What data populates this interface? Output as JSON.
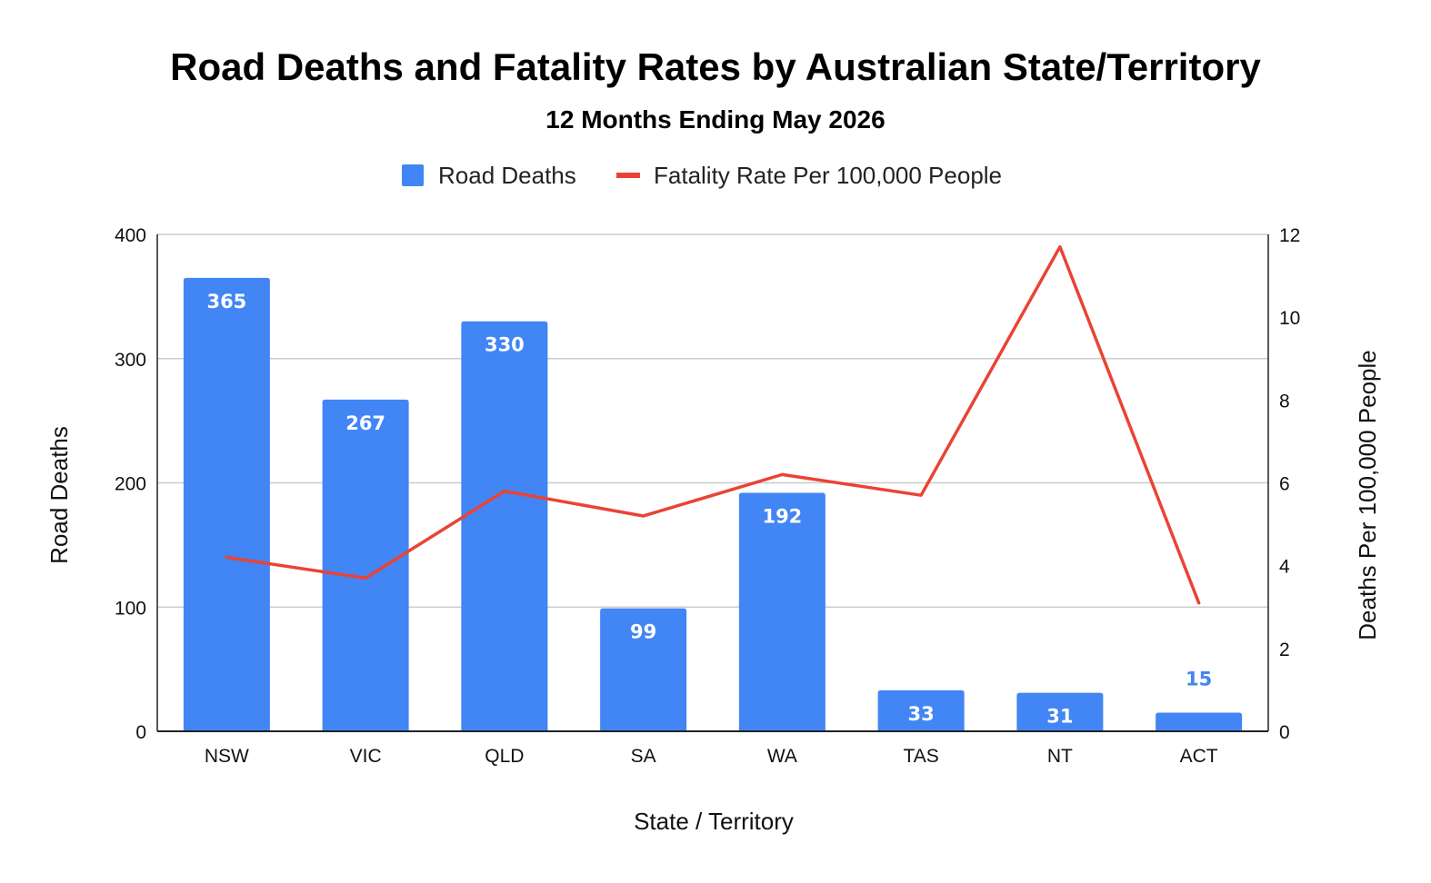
{
  "chart_data": {
    "type": "bar",
    "title": "Road Deaths and Fatality Rates by Australian State/Territory",
    "subtitle": "12 Months Ending May 2026",
    "xlabel": "State / Territory",
    "ylabel": "Road Deaths",
    "y2label": "Deaths Per 100,000 People",
    "categories": [
      "NSW",
      "VIC",
      "QLD",
      "SA",
      "WA",
      "TAS",
      "NT",
      "ACT"
    ],
    "series": [
      {
        "name": "Road Deaths",
        "type": "bar",
        "axis": "left",
        "color": "#4285f4",
        "values": [
          365,
          267,
          330,
          99,
          192,
          33,
          31,
          15
        ]
      },
      {
        "name": "Fatality Rate Per 100,000 People",
        "type": "line",
        "axis": "right",
        "color": "#ea4335",
        "values": [
          4.2,
          3.7,
          5.8,
          5.2,
          6.2,
          5.7,
          11.7,
          3.1
        ]
      }
    ],
    "ylim": [
      0,
      400
    ],
    "yticks": [
      0,
      100,
      200,
      300,
      400
    ],
    "y2lim": [
      0,
      12
    ],
    "y2ticks": [
      0,
      2,
      4,
      6,
      8,
      10,
      12
    ],
    "grid": true,
    "legend": "top-center"
  }
}
